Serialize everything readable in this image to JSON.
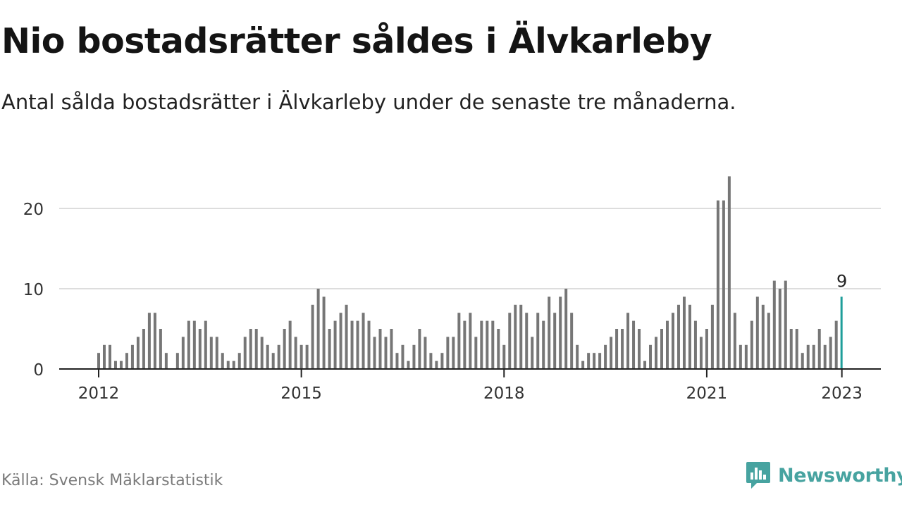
{
  "header": {
    "title": "Nio bostadsrätter såldes i Älvkarleby",
    "subtitle": "Antal sålda bostadsrätter i Älvkarleby under de senaste tre månaderna."
  },
  "footer": {
    "source": "Källa: Svensk Mäklarstatistik",
    "brand": "Newsworthy",
    "brand_icon": "newsworthy-logo-icon"
  },
  "colors": {
    "bar": "#767676",
    "highlight": "#1f9e9a",
    "grid": "#dddddd",
    "axis": "#222222",
    "brand": "#47a3a0"
  },
  "chart_data": {
    "type": "bar",
    "title": "Nio bostadsrätter såldes i Älvkarleby",
    "subtitle": "Antal sålda bostadsrätter i Älvkarleby under de senaste tre månaderna.",
    "xlabel": "",
    "ylabel": "",
    "x_start": "2012-01",
    "x_ticks": [
      "2012",
      "2015",
      "2018",
      "2021",
      "2023"
    ],
    "y_ticks": [
      0,
      10,
      20
    ],
    "ylim": [
      0,
      24
    ],
    "grid": true,
    "legend": "none",
    "highlight_label": "9",
    "values": [
      2,
      3,
      3,
      1,
      1,
      2,
      3,
      4,
      5,
      7,
      7,
      5,
      2,
      0,
      2,
      4,
      6,
      6,
      5,
      6,
      4,
      4,
      2,
      1,
      1,
      2,
      4,
      5,
      5,
      4,
      3,
      2,
      3,
      5,
      6,
      4,
      3,
      3,
      8,
      10,
      9,
      5,
      6,
      7,
      8,
      6,
      6,
      7,
      6,
      4,
      5,
      4,
      5,
      2,
      3,
      1,
      3,
      5,
      4,
      2,
      1,
      2,
      4,
      4,
      7,
      6,
      7,
      4,
      6,
      6,
      6,
      5,
      3,
      7,
      8,
      8,
      7,
      4,
      7,
      6,
      9,
      7,
      9,
      10,
      7,
      3,
      1,
      2,
      2,
      2,
      3,
      4,
      5,
      5,
      7,
      6,
      5,
      1,
      3,
      4,
      5,
      6,
      7,
      8,
      9,
      8,
      6,
      4,
      5,
      8,
      21,
      21,
      24,
      7,
      3,
      3,
      6,
      9,
      8,
      7,
      11,
      10,
      11,
      5,
      5,
      2,
      3,
      3,
      5,
      3,
      4,
      6,
      9
    ]
  }
}
